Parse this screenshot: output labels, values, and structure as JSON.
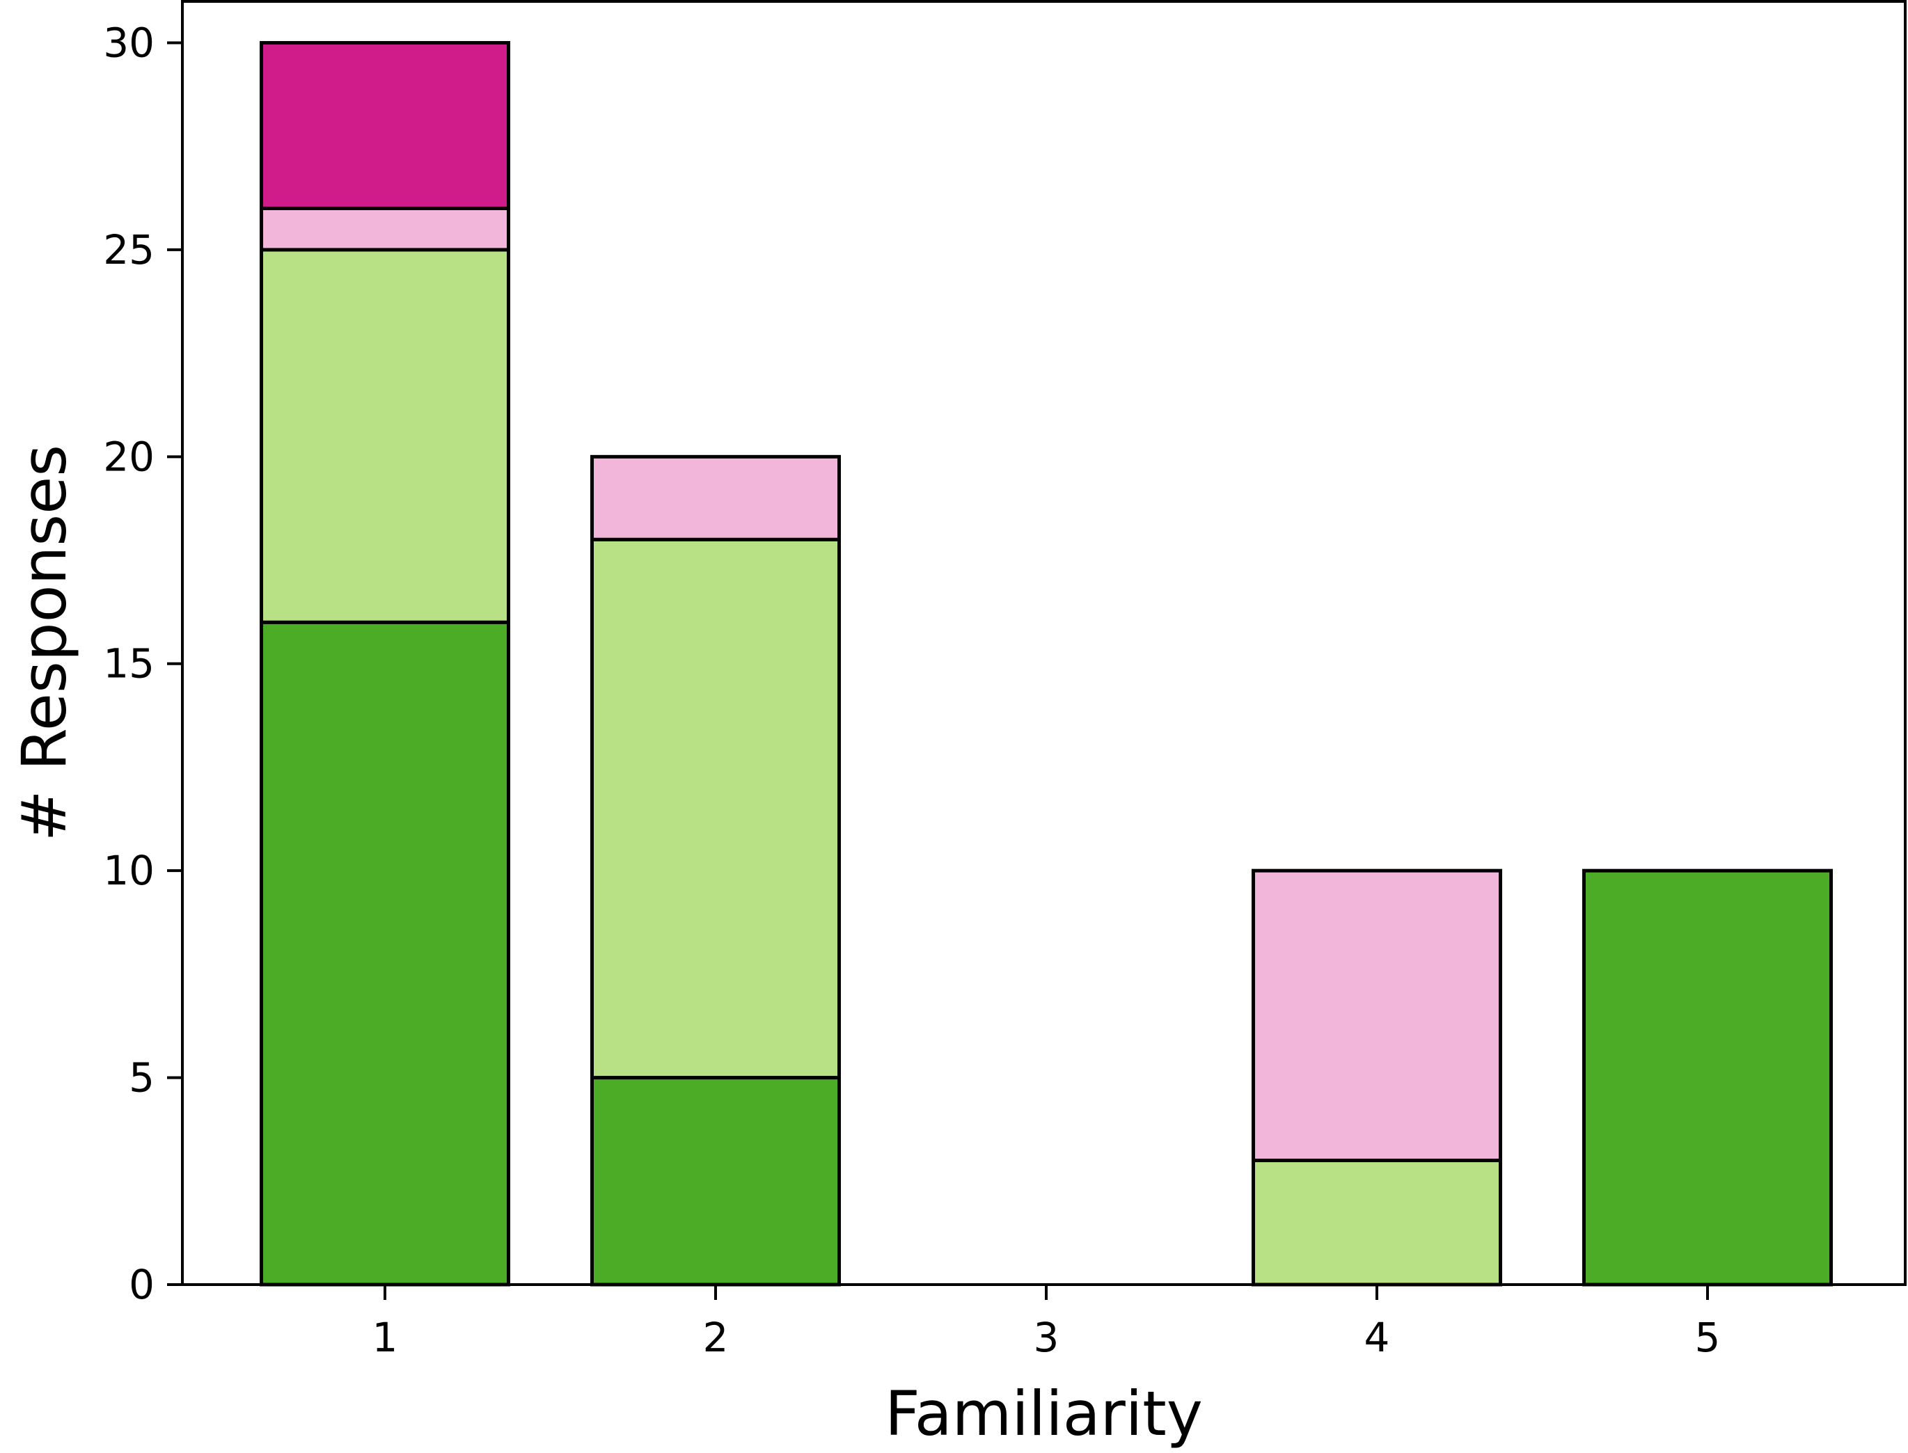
{
  "chart_data": {
    "type": "bar",
    "stacked": true,
    "categories": [
      "1",
      "2",
      "3",
      "4",
      "5"
    ],
    "series": [
      {
        "color": "#4dac26",
        "values": [
          16,
          5,
          0,
          0,
          10
        ]
      },
      {
        "color": "#b8e186",
        "values": [
          9,
          13,
          0,
          3,
          0
        ]
      },
      {
        "color": "#f1b6da",
        "values": [
          1,
          2,
          0,
          7,
          0
        ]
      },
      {
        "color": "#d01c8b",
        "values": [
          4,
          0,
          0,
          0,
          0
        ]
      }
    ],
    "title": "",
    "xlabel": "Familiarity",
    "ylabel": "# Responses",
    "ylim": [
      0,
      31
    ],
    "yticks": [
      0,
      5,
      10,
      15,
      20,
      25,
      30
    ],
    "grid": false,
    "legend": "none"
  }
}
